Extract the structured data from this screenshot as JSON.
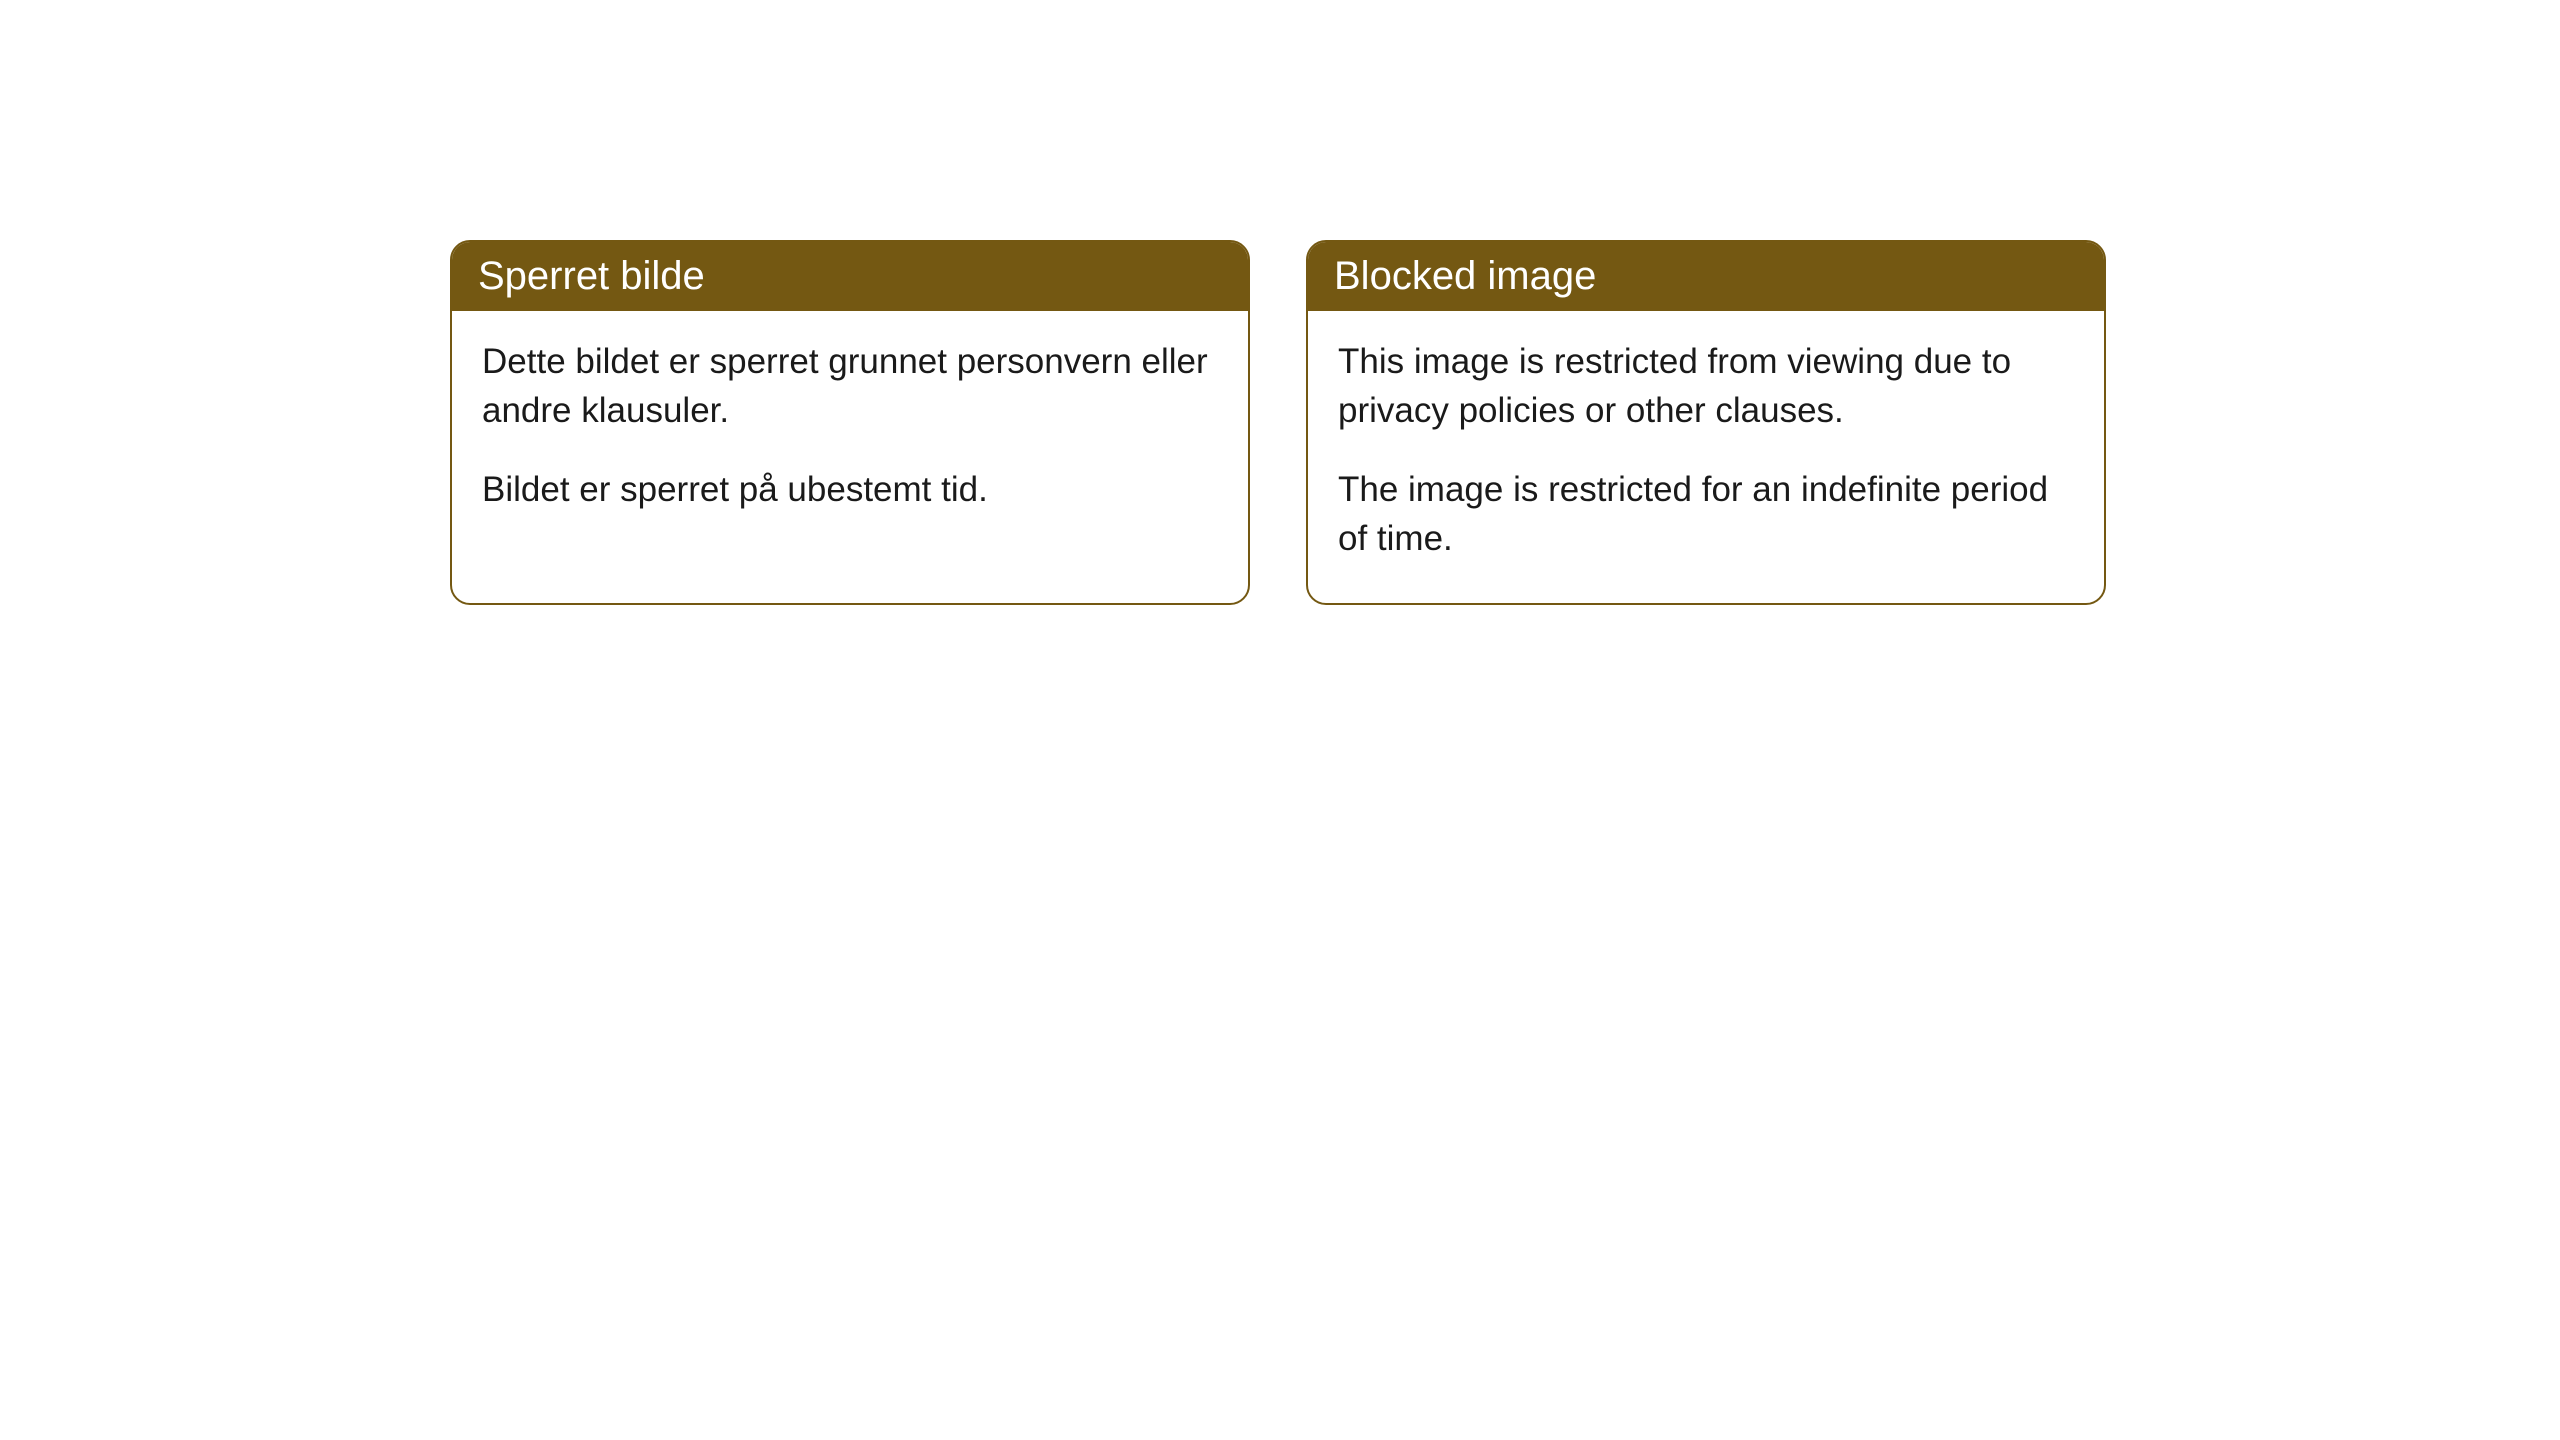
{
  "cards": [
    {
      "title": "Sperret bilde",
      "paragraph1": "Dette bildet er sperret grunnet personvern eller andre klausuler.",
      "paragraph2": "Bildet er sperret på ubestemt tid."
    },
    {
      "title": "Blocked image",
      "paragraph1": "This image is restricted from viewing due to privacy policies or other clauses.",
      "paragraph2": "The image is restricted for an indefinite period of time."
    }
  ],
  "styling": {
    "header_bg_color": "#745812",
    "header_text_color": "#ffffff",
    "border_color": "#745812",
    "body_text_color": "#1a1a1a",
    "card_bg_color": "#ffffff",
    "page_bg_color": "#ffffff",
    "border_radius": 20,
    "header_fontsize": 40,
    "body_fontsize": 35
  }
}
